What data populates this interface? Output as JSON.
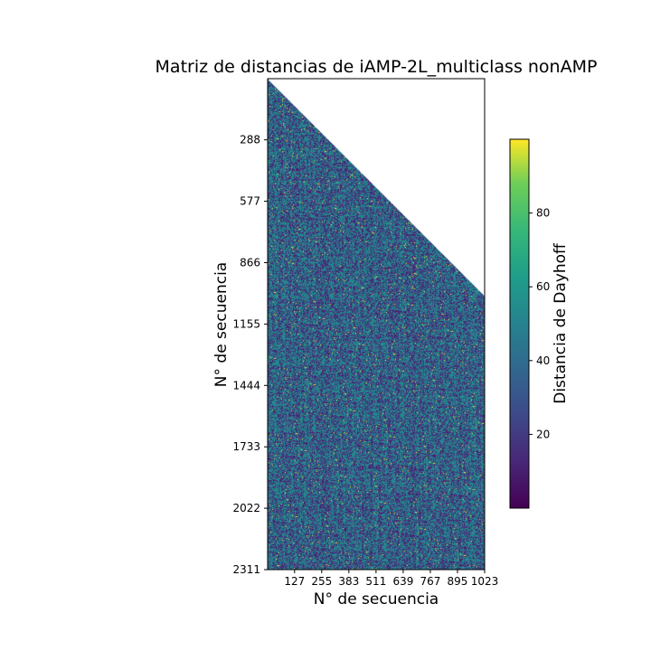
{
  "chart_data": {
    "type": "heatmap",
    "title": "Matriz de distancias de iAMP-2L_multiclass nonAMP",
    "xlabel": "N° de secuencia",
    "ylabel": "N° de secuencia",
    "x_range": [
      0,
      1023
    ],
    "y_range": [
      0,
      2311
    ],
    "x_ticks": [
      "127",
      "255",
      "383",
      "511",
      "639",
      "767",
      "895",
      "1023"
    ],
    "y_ticks": [
      "288",
      "577",
      "866",
      "1155",
      "1444",
      "1733",
      "2022",
      "2311"
    ],
    "y_inverted": true,
    "mask": "upper-triangle blank",
    "colormap": "viridis",
    "colorbar": {
      "label": "Distancia de Dayhoff",
      "range": [
        0,
        100
      ],
      "ticks": [
        "20",
        "40",
        "60",
        "80"
      ]
    },
    "dominant_values": [
      10,
      50,
      56
    ],
    "grid": false
  }
}
